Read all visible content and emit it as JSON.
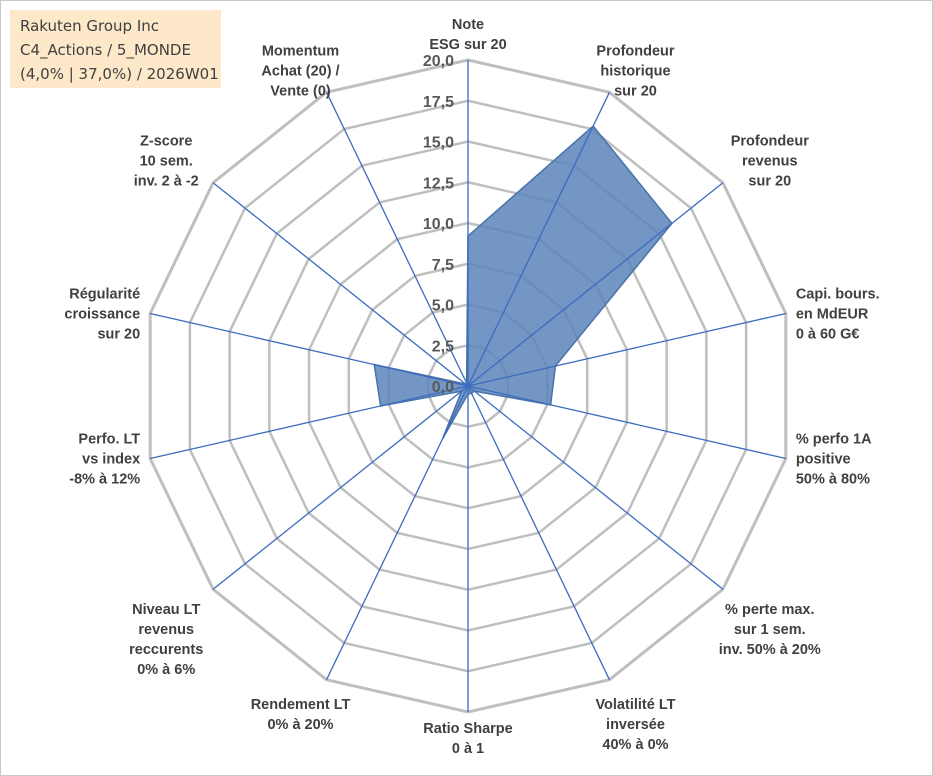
{
  "title_box": {
    "line1": "Rakuten Group Inc",
    "line2": "C4_Actions / 5_MONDE",
    "line3": "(4,0% | 37,0%) / 2026W01"
  },
  "chart_data": {
    "type": "radar",
    "rmin": 0,
    "rmax": 20,
    "ticks": [
      "0,0",
      "2,5",
      "5,0",
      "7,5",
      "10,0",
      "12,5",
      "15,0",
      "17,5",
      "20,0"
    ],
    "axes": [
      [
        "Note",
        "ESG sur 20"
      ],
      [
        "Profondeur",
        "historique",
        "sur 20"
      ],
      [
        "Profondeur",
        "revenus",
        "sur 20"
      ],
      [
        "Capi. bours.",
        "en MdEUR",
        "0 à 60 G€"
      ],
      [
        "% perfo 1A",
        "positive",
        "50% à 80%"
      ],
      [
        "% perte max.",
        "sur 1 sem.",
        "inv. 50% à 20%"
      ],
      [
        "Volatilité LT",
        "inversée",
        "40% à 0%"
      ],
      [
        "Ratio Sharpe",
        "0 à 1"
      ],
      [
        "Rendement LT",
        "0% à 20%"
      ],
      [
        "Niveau LT",
        "revenus",
        "reccurents",
        "0% à 6%"
      ],
      [
        "Perfo. LT",
        "vs index",
        "-8% à 12%"
      ],
      [
        "Régularité",
        "croissance",
        "sur 20"
      ],
      [
        "Z-score",
        "10 sem.",
        "inv. 2 à -2"
      ],
      [
        "Momentum",
        "Achat (20) /",
        "Vente (0)"
      ]
    ],
    "series": [
      {
        "values": [
          9.2,
          17.7,
          16.0,
          5.5,
          5.2,
          0.5,
          0.5,
          0.5,
          3.6,
          0.5,
          5.5,
          5.9,
          0.2,
          0.2
        ]
      }
    ],
    "colors": {
      "fill": "#5a84bb",
      "stroke": "#4a73aa",
      "axis": "#3b6bbf",
      "grid": "#bfbfbf"
    }
  }
}
